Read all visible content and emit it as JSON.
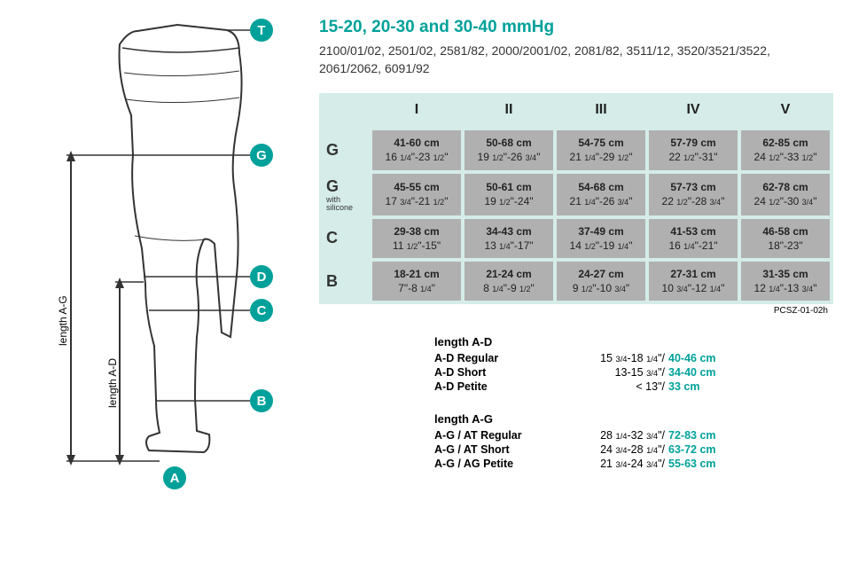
{
  "title_pressure": "15-20, 20-30 and 30-40 mmHg",
  "subtitle": "2100/01/02, 2501/02, 2581/82, 2000/2001/02, 2081/82, 3511/12, 3520/3521/3522, 2061/2062, 6091/92",
  "columns": [
    "I",
    "II",
    "III",
    "IV",
    "V"
  ],
  "rows": [
    {
      "label": "G",
      "sub": "",
      "cells": [
        {
          "cm": "41-60 cm",
          "in": "16 1/4\"-23 1/2\""
        },
        {
          "cm": "50-68 cm",
          "in": "19 1/2\"-26 3/4\""
        },
        {
          "cm": "54-75 cm",
          "in": "21 1/4\"-29 1/2\""
        },
        {
          "cm": "57-79 cm",
          "in": "22 1/2\"-31\""
        },
        {
          "cm": "62-85 cm",
          "in": "24 1/2\"-33 1/2\""
        }
      ]
    },
    {
      "label": "G",
      "sub": "with silicone",
      "cells": [
        {
          "cm": "45-55 cm",
          "in": "17 3/4\"-21 1/2\""
        },
        {
          "cm": "50-61 cm",
          "in": "19 1/2\"-24\""
        },
        {
          "cm": "54-68 cm",
          "in": "21 1/4\"-26 3/4\""
        },
        {
          "cm": "57-73 cm",
          "in": "22 1/2\"-28 3/4\""
        },
        {
          "cm": "62-78 cm",
          "in": "24 1/2\"-30 3/4\""
        }
      ]
    },
    {
      "label": "C",
      "sub": "",
      "cells": [
        {
          "cm": "29-38 cm",
          "in": "11 1/2\"-15\""
        },
        {
          "cm": "34-43 cm",
          "in": "13 1/4\"-17\""
        },
        {
          "cm": "37-49 cm",
          "in": "14 1/2\"-19 1/4\""
        },
        {
          "cm": "41-53 cm",
          "in": "16 1/4\"-21\""
        },
        {
          "cm": "46-58 cm",
          "in": "18\"-23\""
        }
      ]
    },
    {
      "label": "B",
      "sub": "",
      "cells": [
        {
          "cm": "18-21 cm",
          "in": "7\"-8 1/4\""
        },
        {
          "cm": "21-24 cm",
          "in": "8 1/4\"-9 1/2\""
        },
        {
          "cm": "24-27 cm",
          "in": "9 1/2\"-10 3/4\""
        },
        {
          "cm": "27-31 cm",
          "in": "10 3/4\"-12 1/4\""
        },
        {
          "cm": "31-35 cm",
          "in": "12 1/4\"-13 3/4\""
        }
      ]
    }
  ],
  "table_code": "PCSZ-01-02h",
  "length_ad": {
    "heading": "length A-D",
    "rows": [
      {
        "label": "A-D Regular",
        "inches": "15 3/4-18 1/4\"/",
        "cm": "40-46 cm"
      },
      {
        "label": "A-D Short",
        "inches": "13-15 3/4\"/",
        "cm": "34-40 cm"
      },
      {
        "label": "A-D Petite",
        "inches": "< 13\"/",
        "cm": "33 cm"
      }
    ]
  },
  "length_ag": {
    "heading": "length A-G",
    "rows": [
      {
        "label": "A-G / AT Regular",
        "inches": "28 1/4-32 3/4\"/",
        "cm": "72-83 cm"
      },
      {
        "label": "A-G / AT Short",
        "inches": "24 3/4-28 1/4\"/",
        "cm": "63-72 cm"
      },
      {
        "label": "A-G / AG Petite",
        "inches": "21 3/4-24 3/4\"/",
        "cm": "55-63 cm"
      }
    ]
  },
  "markers": {
    "T": "T",
    "G": "G",
    "D": "D",
    "C": "C",
    "B": "B",
    "A": "A"
  },
  "arrow_ag": "length A-G",
  "arrow_ad": "length A-D",
  "colors": {
    "teal": "#00a19a",
    "table_bg": "#d5ece8",
    "cell_bg": "#b0b0b0",
    "text": "#222222"
  }
}
